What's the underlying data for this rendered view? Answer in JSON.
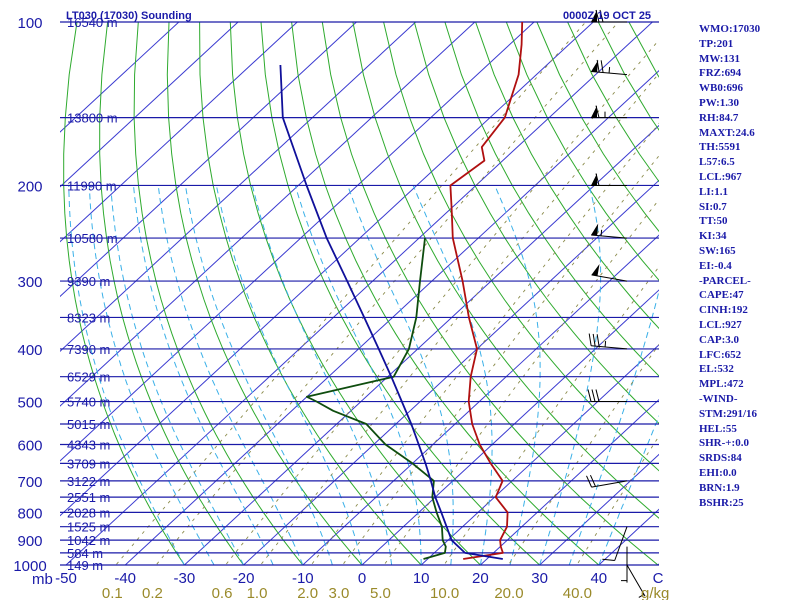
{
  "title_left": "LT030 (17030) Sounding",
  "title_right": "0000Z 19 OCT 25",
  "pressure_unit": "mb",
  "mixing_ratio_unit": "g/kg",
  "colors": {
    "axis": "#1a1aa8",
    "isobar": "#1a1aa8",
    "isotherm": "#3a3ad0",
    "dry_adiabat": "#2eaa2e",
    "moist_adiabat": "#3ab0e8",
    "mixing_ratio": "#8a8a4a",
    "temperature": "#b01010",
    "dewpoint": "#0e4d0e",
    "parcel": "#10109a",
    "wind": "#000000",
    "mix_label": "#9a8a2a"
  },
  "chart_data": {
    "type": "skew-t",
    "pressure_range": [
      1000,
      100
    ],
    "pressure_ticks": [
      100,
      200,
      300,
      400,
      500,
      600,
      700,
      800,
      900,
      1000
    ],
    "height_levels": [
      {
        "p": 100,
        "label": "16540 m"
      },
      {
        "p": 150,
        "label": "13800 m"
      },
      {
        "p": 200,
        "label": "11990 m"
      },
      {
        "p": 250,
        "label": "10580 m"
      },
      {
        "p": 300,
        "label": "9390 m"
      },
      {
        "p": 350,
        "label": "8323 m"
      },
      {
        "p": 400,
        "label": "7390 m"
      },
      {
        "p": 450,
        "label": "6529 m"
      },
      {
        "p": 500,
        "label": "5740 m"
      },
      {
        "p": 550,
        "label": "5015 m"
      },
      {
        "p": 600,
        "label": "4343 m"
      },
      {
        "p": 650,
        "label": "3709 m"
      },
      {
        "p": 700,
        "label": "3122 m"
      },
      {
        "p": 750,
        "label": "2551 m"
      },
      {
        "p": 800,
        "label": "2028 m"
      },
      {
        "p": 850,
        "label": "1525 m"
      },
      {
        "p": 900,
        "label": "1042 m"
      },
      {
        "p": 950,
        "label": "584 m"
      },
      {
        "p": 1000,
        "label": "149 m"
      }
    ],
    "temperature_ticks": [
      -50,
      -40,
      -30,
      -20,
      -10,
      0,
      10,
      20,
      30,
      40
    ],
    "temperature_tick_labels": [
      "-50",
      "-40",
      "-30",
      "-20",
      "-10",
      "0",
      "10",
      "20",
      "30",
      "40"
    ],
    "last_temperature_label": "C",
    "mixing_ratios": [
      {
        "w": 0.1,
        "label": "0.1"
      },
      {
        "w": 0.2,
        "label": "0.2"
      },
      {
        "w": 0.6,
        "label": "0.6"
      },
      {
        "w": 1.0,
        "label": "1.0"
      },
      {
        "w": 2.0,
        "label": "2.0"
      },
      {
        "w": 3.0,
        "label": "3.0"
      },
      {
        "w": 5.0,
        "label": "5.0"
      },
      {
        "w": 10.0,
        "label": "10.0"
      },
      {
        "w": 20.0,
        "label": "20.0"
      },
      {
        "w": 40.0,
        "label": "40.0"
      }
    ],
    "series": [
      {
        "name": "Temperature",
        "key": "temperature",
        "points": [
          [
            975,
            16.0
          ],
          [
            950,
            21.6
          ],
          [
            925,
            20.1
          ],
          [
            900,
            18.8
          ],
          [
            850,
            17.5
          ],
          [
            800,
            15.0
          ],
          [
            750,
            10.2
          ],
          [
            700,
            8.4
          ],
          [
            650,
            3.2
          ],
          [
            600,
            -2.1
          ],
          [
            550,
            -7.1
          ],
          [
            500,
            -11.8
          ],
          [
            450,
            -16.0
          ],
          [
            400,
            -20.0
          ],
          [
            350,
            -27.1
          ],
          [
            300,
            -34.8
          ],
          [
            250,
            -44.3
          ],
          [
            220,
            -50.0
          ],
          [
            200,
            -54.3
          ],
          [
            180,
            -53.1
          ],
          [
            170,
            -56.0
          ],
          [
            150,
            -57.5
          ],
          [
            125,
            -63.0
          ],
          [
            110,
            -68.0
          ],
          [
            100,
            -72.0
          ]
        ]
      },
      {
        "name": "Dewpoint",
        "key": "dewpoint",
        "points": [
          [
            975,
            9.3
          ],
          [
            950,
            11.8
          ],
          [
            925,
            10.8
          ],
          [
            900,
            9.1
          ],
          [
            850,
            6.5
          ],
          [
            800,
            3.0
          ],
          [
            750,
            -0.5
          ],
          [
            700,
            -3.2
          ],
          [
            650,
            -10.0
          ],
          [
            600,
            -18.0
          ],
          [
            550,
            -25.0
          ],
          [
            520,
            -33.0
          ],
          [
            500,
            -37.5
          ],
          [
            490,
            -40.0
          ],
          [
            450,
            -29.0
          ],
          [
            400,
            -31.5
          ],
          [
            350,
            -36.0
          ],
          [
            300,
            -42.0
          ],
          [
            250,
            -49.0
          ]
        ]
      },
      {
        "name": "Parcel",
        "key": "parcel",
        "points": [
          [
            975,
            22.7
          ],
          [
            950,
            15.2
          ],
          [
            900,
            10.6
          ],
          [
            850,
            7.3
          ],
          [
            800,
            3.8
          ],
          [
            750,
            0.0
          ],
          [
            700,
            -3.7
          ],
          [
            650,
            -7.8
          ],
          [
            600,
            -12.4
          ],
          [
            550,
            -17.4
          ],
          [
            500,
            -23.1
          ],
          [
            450,
            -29.4
          ],
          [
            400,
            -36.6
          ],
          [
            350,
            -44.8
          ],
          [
            300,
            -54.3
          ],
          [
            250,
            -65.6
          ],
          [
            200,
            -78.6
          ],
          [
            150,
            -95.0
          ],
          [
            120,
            -105.0
          ]
        ]
      }
    ],
    "wind_barbs": [
      {
        "p": 100,
        "dir": 270,
        "speed": 70
      },
      {
        "p": 125,
        "dir": 275,
        "speed": 75
      },
      {
        "p": 150,
        "dir": 270,
        "speed": 65
      },
      {
        "p": 200,
        "dir": 270,
        "speed": 60
      },
      {
        "p": 250,
        "dir": 275,
        "speed": 55
      },
      {
        "p": 300,
        "dir": 280,
        "speed": 50
      },
      {
        "p": 400,
        "dir": 275,
        "speed": 35
      },
      {
        "p": 500,
        "dir": 270,
        "speed": 30
      },
      {
        "p": 700,
        "dir": 260,
        "speed": 20
      },
      {
        "p": 850,
        "dir": 200,
        "speed": 10
      },
      {
        "p": 925,
        "dir": 180,
        "speed": 5
      },
      {
        "p": 1000,
        "dir": 150,
        "speed": 5
      }
    ]
  },
  "indices": [
    "WMO:17030",
    "TP:201",
    "MW:131",
    "FRZ:694",
    "WB0:696",
    "PW:1.30",
    "RH:84.7",
    "MAXT:24.6",
    "TH:5591",
    "L57:6.5",
    "LCL:967",
    "LI:1.1",
    "SI:0.7",
    "TT:50",
    "KI:34",
    "SW:165",
    "EI:-0.4",
    "-PARCEL-",
    "CAPE:47",
    "CINH:192",
    "LCL:927",
    "CAP:3.0",
    "LFC:652",
    "EL:532",
    "MPL:472",
    "-WIND-",
    "STM:291/16",
    "HEL:55",
    "SHR-+:0.0",
    "SRDS:84",
    "EHI:0.0",
    "BRN:1.9",
    "BSHR:25"
  ]
}
